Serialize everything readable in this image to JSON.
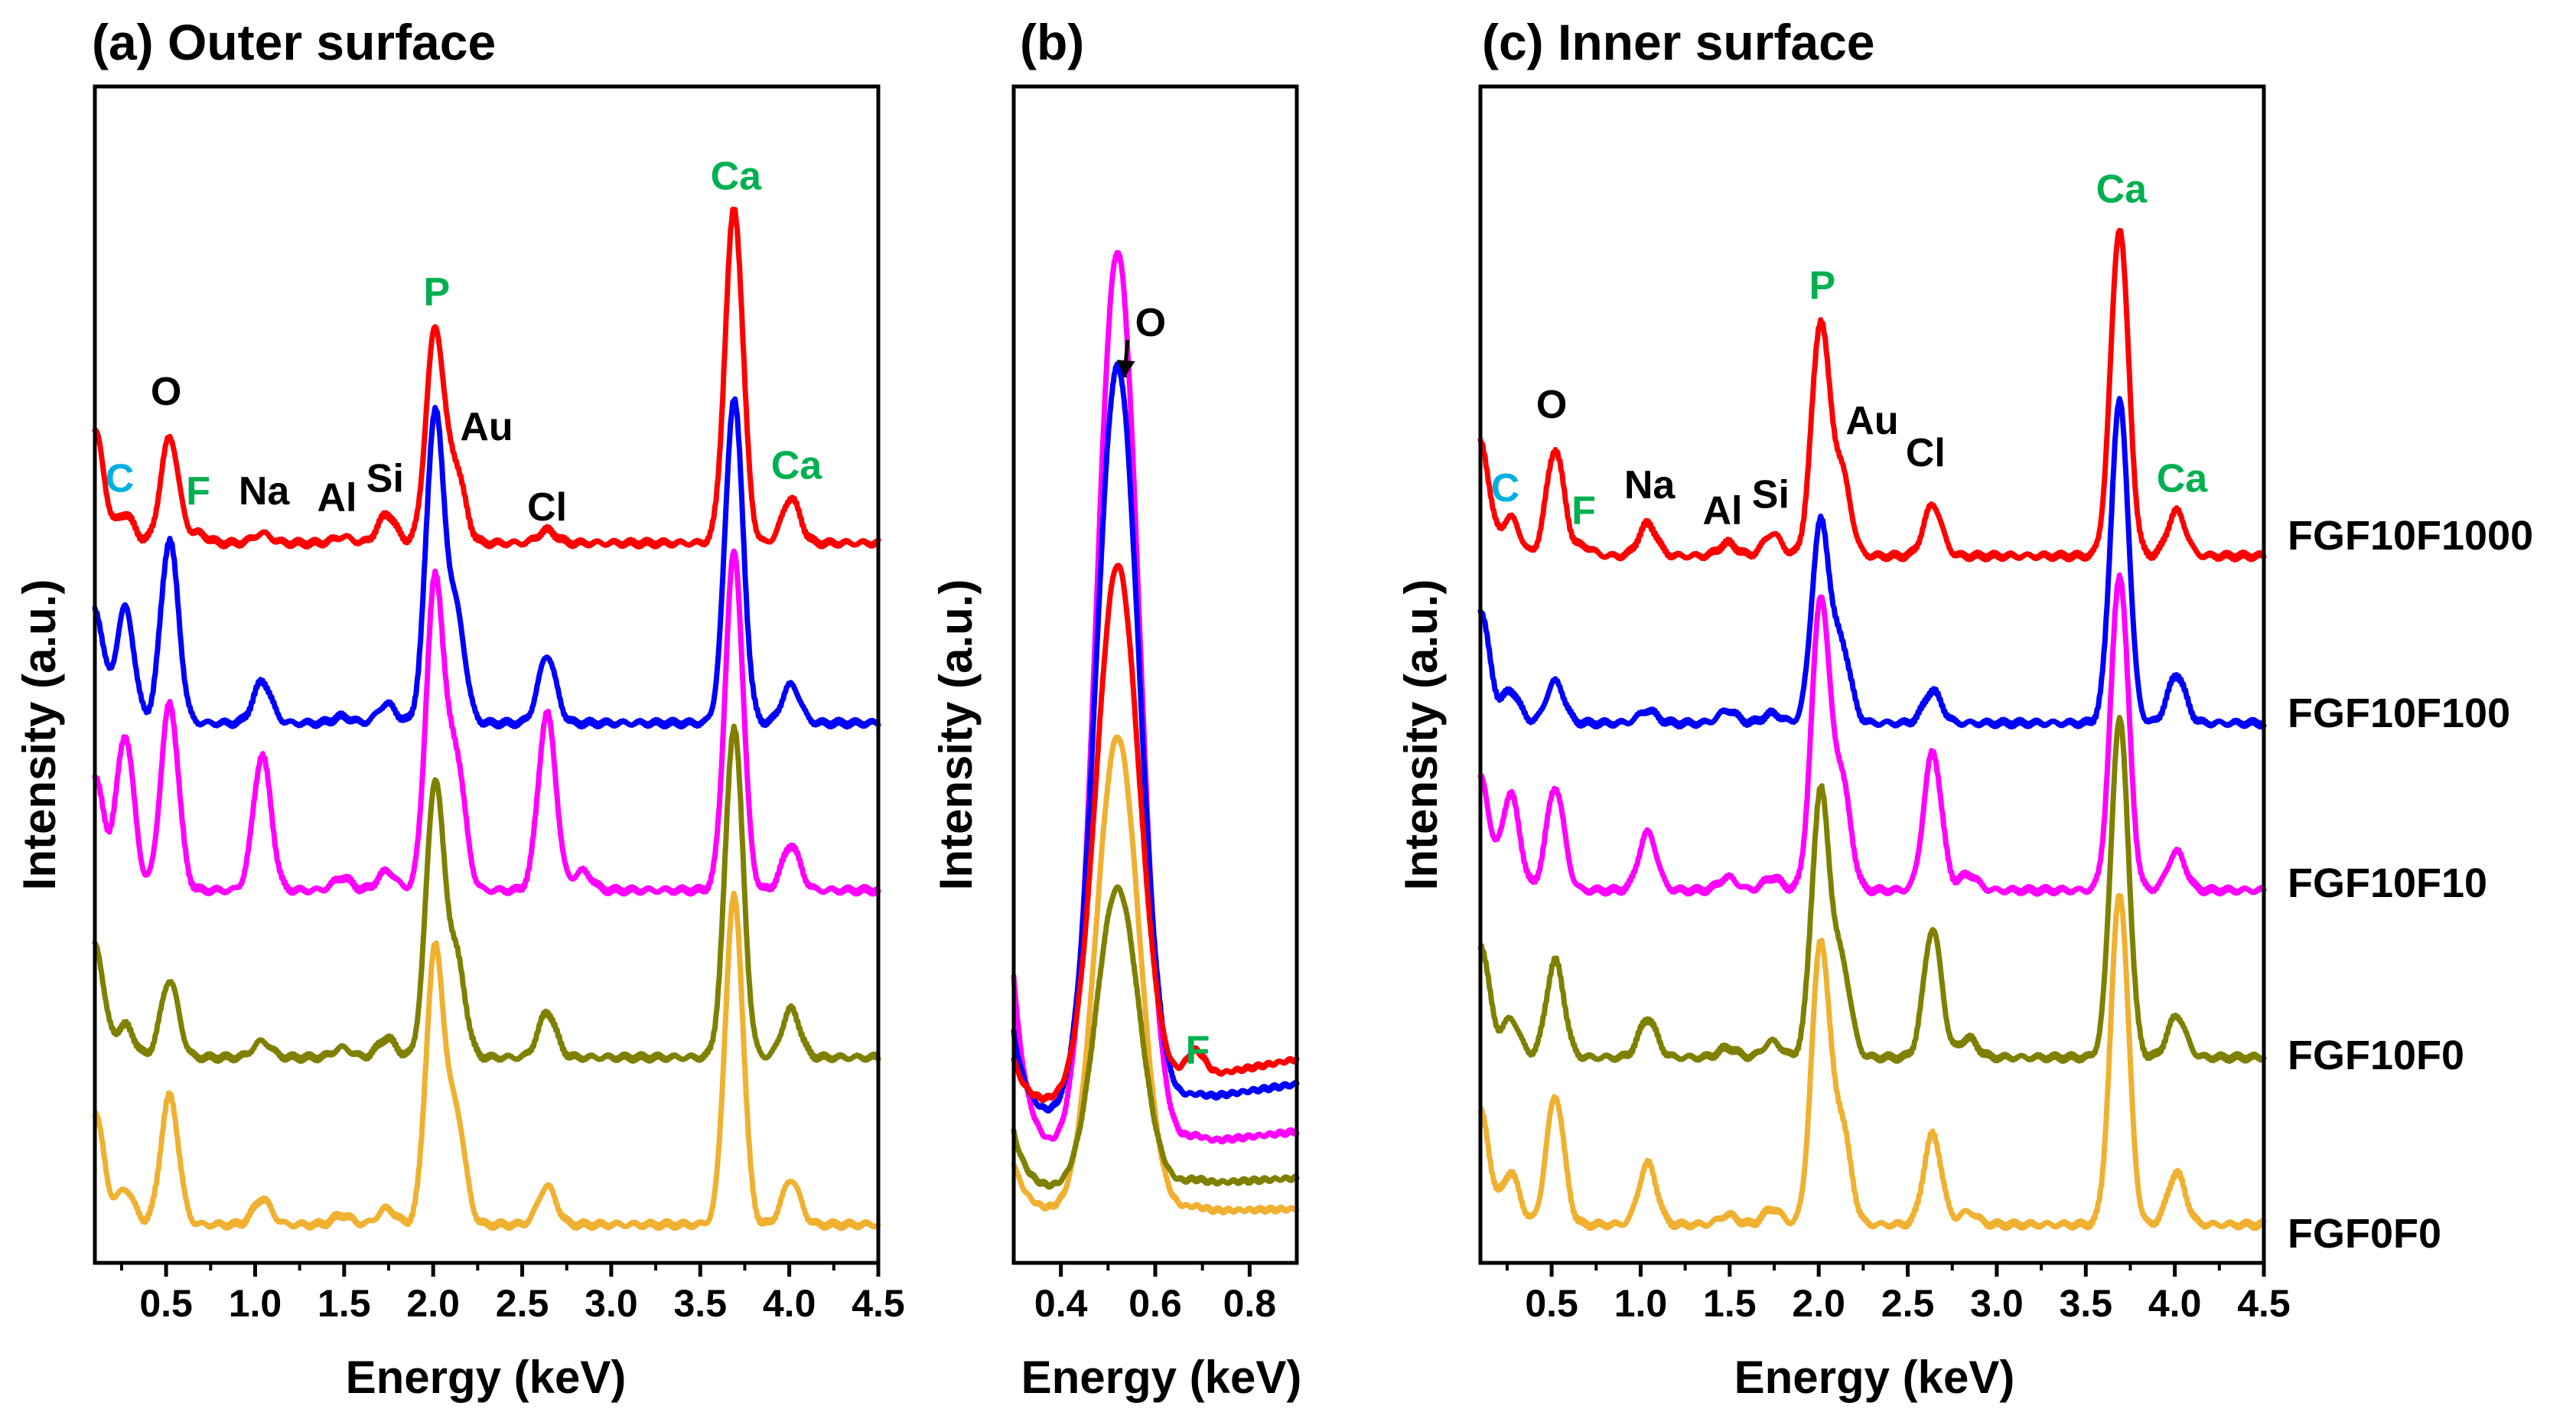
{
  "chart_data": [
    {
      "id": "a",
      "type": "line",
      "title": "(a) Outer surface",
      "xlabel": "Energy (keV)",
      "ylabel": "Intensity (a.u.)",
      "xlim": [
        0.1,
        4.5
      ],
      "xticks": [
        "0.5",
        "1.0",
        "1.5",
        "2.0",
        "2.5",
        "3.0",
        "3.5",
        "4.0",
        "4.5"
      ],
      "xtick_values": [
        0.5,
        1.0,
        1.5,
        2.0,
        2.5,
        3.0,
        3.5,
        4.0,
        4.5
      ],
      "y_ticks_shown": false,
      "offset_step": 0.52,
      "series": [
        {
          "name": "FGF10F1000",
          "color": "#ff0000",
          "offset": 4,
          "baseline": 0.04,
          "sigma": 0.05,
          "peaks": [
            [
              0.27,
              0.09
            ],
            [
              0.52,
              0.33
            ],
            [
              0.68,
              0.03
            ],
            [
              1.04,
              0.03
            ],
            [
              1.49,
              0.02
            ],
            [
              1.74,
              0.09
            ],
            [
              2.01,
              0.66
            ],
            [
              2.13,
              0.22
            ],
            [
              2.64,
              0.04
            ],
            [
              3.69,
              1.04
            ],
            [
              4.01,
              0.14
            ]
          ]
        },
        {
          "name": "FGF10F100",
          "color": "#0000ff",
          "offset": 3,
          "baseline": 0.0,
          "sigma": 0.05,
          "peaks": [
            [
              0.27,
              0.36
            ],
            [
              0.52,
              0.57
            ],
            [
              1.04,
              0.13
            ],
            [
              1.49,
              0.02
            ],
            [
              1.74,
              0.06
            ],
            [
              2.01,
              0.96
            ],
            [
              2.13,
              0.33
            ],
            [
              2.64,
              0.21
            ],
            [
              3.69,
              1.01
            ],
            [
              4.01,
              0.12
            ]
          ]
        },
        {
          "name": "FGF10F10",
          "color": "#ff00ff",
          "offset": 2,
          "baseline": 0.0,
          "sigma": 0.05,
          "peaks": [
            [
              0.27,
              0.48
            ],
            [
              0.52,
              0.58
            ],
            [
              1.04,
              0.42
            ],
            [
              1.49,
              0.04
            ],
            [
              1.74,
              0.06
            ],
            [
              2.01,
              0.96
            ],
            [
              2.13,
              0.4
            ],
            [
              2.64,
              0.55
            ],
            [
              2.84,
              0.06
            ],
            [
              3.69,
              1.05
            ],
            [
              4.01,
              0.14
            ]
          ]
        },
        {
          "name": "FGF10F0",
          "color": "#808000",
          "offset": 1,
          "baseline": 0.0,
          "sigma": 0.05,
          "peaks": [
            [
              0.27,
              0.1
            ],
            [
              0.52,
              0.24
            ],
            [
              1.04,
              0.05
            ],
            [
              1.49,
              0.03
            ],
            [
              1.74,
              0.06
            ],
            [
              2.01,
              0.85
            ],
            [
              2.13,
              0.3
            ],
            [
              2.64,
              0.14
            ],
            [
              3.69,
              1.03
            ],
            [
              4.01,
              0.15
            ]
          ]
        },
        {
          "name": "FGF0F0",
          "color": "#f0b030",
          "offset": 0,
          "baseline": 0.0,
          "sigma": 0.05,
          "peaks": [
            [
              0.27,
              0.11
            ],
            [
              0.52,
              0.4
            ],
            [
              1.04,
              0.08
            ],
            [
              1.49,
              0.03
            ],
            [
              1.74,
              0.05
            ],
            [
              2.01,
              0.85
            ],
            [
              2.13,
              0.33
            ],
            [
              2.64,
              0.12
            ],
            [
              3.69,
              1.02
            ],
            [
              4.01,
              0.14
            ]
          ]
        }
      ],
      "annotations": [
        {
          "text": "C",
          "x": 0.24,
          "series": 0,
          "dy": 0.16,
          "color": "#00b0e0"
        },
        {
          "text": "O",
          "x": 0.5,
          "series": 0,
          "dy": 0.43,
          "color": "#000000"
        },
        {
          "text": "F",
          "x": 0.68,
          "series": 0,
          "dy": 0.12,
          "color": "#00b050"
        },
        {
          "text": "Na",
          "x": 1.05,
          "series": 0,
          "dy": 0.12,
          "color": "#000000"
        },
        {
          "text": "Al",
          "x": 1.46,
          "series": 0,
          "dy": 0.1,
          "color": "#000000"
        },
        {
          "text": "Si",
          "x": 1.73,
          "series": 0,
          "dy": 0.16,
          "color": "#000000"
        },
        {
          "text": "P",
          "x": 2.02,
          "series": 0,
          "dy": 0.74,
          "color": "#00b050"
        },
        {
          "text": "Au",
          "x": 2.3,
          "series": 0,
          "dy": 0.32,
          "color": "#000000"
        },
        {
          "text": "Cl",
          "x": 2.64,
          "series": 0,
          "dy": 0.07,
          "color": "#000000"
        },
        {
          "text": "Ca",
          "x": 3.7,
          "series": 0,
          "dy": 1.1,
          "color": "#00b050"
        },
        {
          "text": "Ca",
          "x": 4.04,
          "series": 0,
          "dy": 0.2,
          "color": "#00b050"
        }
      ]
    },
    {
      "id": "b",
      "type": "line",
      "title": "(b)",
      "xlabel": "Energy (keV)",
      "ylabel": "Intensity (a.u.)",
      "xlim": [
        0.3,
        0.9
      ],
      "xticks": [
        "0.4",
        "0.6",
        "0.8"
      ],
      "xtick_values": [
        0.4,
        0.6,
        0.8
      ],
      "y_ticks_shown": false,
      "series": [
        {
          "name": "FGF10F1000",
          "color": "#ff0000",
          "base": 0.55,
          "tail": 0.5,
          "peak": 2.55,
          "sigma": 0.045,
          "fpeak": 0.13,
          "wall": 0.25
        },
        {
          "name": "FGF10F100",
          "color": "#0000ff",
          "base": 0.48,
          "tail": 0.4,
          "peak": 3.6,
          "sigma": 0.045,
          "fpeak": 0.02,
          "wall": 0.45
        },
        {
          "name": "FGF10F10",
          "color": "#ff00ff",
          "base": 0.3,
          "tail": 0.3,
          "peak": 4.35,
          "sigma": 0.045,
          "fpeak": 0.03,
          "wall": 0.9
        },
        {
          "name": "FGF10F0",
          "color": "#808000",
          "base": 0.15,
          "tail": 0.15,
          "peak": 1.45,
          "sigma": 0.045,
          "fpeak": 0.02,
          "wall": 0.3
        },
        {
          "name": "FGF0F0",
          "color": "#f0b030",
          "base": 0.05,
          "tail": 0.05,
          "peak": 2.3,
          "sigma": 0.045,
          "fpeak": 0.02,
          "wall": 0.25
        }
      ],
      "annotations": [
        {
          "text": "O",
          "x": 0.59,
          "y": 4.3,
          "color": "#000000",
          "arrow_to": [
            0.535,
            4.1
          ]
        },
        {
          "text": "F",
          "x": 0.69,
          "y": 0.78,
          "color": "#00b050"
        }
      ]
    },
    {
      "id": "c",
      "type": "line",
      "title": "(c) Inner surface",
      "xlabel": "Energy (keV)",
      "ylabel": "Intensity (a.u.)",
      "xlim": [
        0.1,
        4.5
      ],
      "xticks": [
        "0.5",
        "1.0",
        "1.5",
        "2.0",
        "2.5",
        "3.0",
        "3.5",
        "4.0",
        "4.5"
      ],
      "xtick_values": [
        0.5,
        1.0,
        1.5,
        2.0,
        2.5,
        3.0,
        3.5,
        4.0,
        4.5
      ],
      "y_ticks_shown": false,
      "offset_step": 0.52,
      "series": [
        {
          "name": "FGF10F1000",
          "color": "#ff0000",
          "offset": 4,
          "baseline": 0.0,
          "sigma": 0.05,
          "peaks": [
            [
              0.27,
              0.12
            ],
            [
              0.52,
              0.33
            ],
            [
              0.68,
              0.03
            ],
            [
              1.04,
              0.1
            ],
            [
              1.49,
              0.04
            ],
            [
              1.74,
              0.07
            ],
            [
              2.01,
              0.72
            ],
            [
              2.13,
              0.25
            ],
            [
              2.64,
              0.16
            ],
            [
              3.69,
              1.02
            ],
            [
              4.01,
              0.14
            ]
          ]
        },
        {
          "name": "FGF10F100",
          "color": "#0000ff",
          "offset": 3,
          "baseline": 0.0,
          "sigma": 0.05,
          "peaks": [
            [
              0.27,
              0.1
            ],
            [
              0.52,
              0.13
            ],
            [
              1.04,
              0.04
            ],
            [
              1.49,
              0.04
            ],
            [
              1.74,
              0.03
            ],
            [
              2.01,
              0.62
            ],
            [
              2.13,
              0.23
            ],
            [
              2.64,
              0.1
            ],
            [
              3.69,
              1.0
            ],
            [
              4.01,
              0.15
            ]
          ]
        },
        {
          "name": "FGF10F10",
          "color": "#ff00ff",
          "offset": 2,
          "baseline": 0.0,
          "sigma": 0.05,
          "peaks": [
            [
              0.27,
              0.3
            ],
            [
              0.52,
              0.32
            ],
            [
              1.04,
              0.18
            ],
            [
              1.49,
              0.04
            ],
            [
              1.74,
              0.04
            ],
            [
              2.01,
              0.9
            ],
            [
              2.13,
              0.33
            ],
            [
              2.64,
              0.43
            ],
            [
              2.84,
              0.05
            ],
            [
              3.69,
              0.98
            ],
            [
              4.01,
              0.12
            ]
          ]
        },
        {
          "name": "FGF10F0",
          "color": "#808000",
          "offset": 1,
          "baseline": 0.0,
          "sigma": 0.05,
          "peaks": [
            [
              0.27,
              0.12
            ],
            [
              0.52,
              0.3
            ],
            [
              1.04,
              0.12
            ],
            [
              1.49,
              0.03
            ],
            [
              1.74,
              0.05
            ],
            [
              2.01,
              0.82
            ],
            [
              2.13,
              0.28
            ],
            [
              2.64,
              0.4
            ],
            [
              2.84,
              0.06
            ],
            [
              3.69,
              1.05
            ],
            [
              4.01,
              0.13
            ]
          ]
        },
        {
          "name": "FGF0F0",
          "color": "#f0b030",
          "offset": 0,
          "baseline": 0.0,
          "sigma": 0.05,
          "peaks": [
            [
              0.27,
              0.16
            ],
            [
              0.52,
              0.4
            ],
            [
              1.04,
              0.19
            ],
            [
              1.49,
              0.03
            ],
            [
              1.74,
              0.05
            ],
            [
              2.01,
              0.87
            ],
            [
              2.13,
              0.3
            ],
            [
              2.64,
              0.28
            ],
            [
              2.84,
              0.04
            ],
            [
              3.69,
              1.03
            ],
            [
              4.01,
              0.16
            ]
          ]
        }
      ],
      "annotations": [
        {
          "text": "C",
          "x": 0.24,
          "series": 0,
          "dy": 0.17,
          "color": "#00b0e0"
        },
        {
          "text": "O",
          "x": 0.5,
          "series": 0,
          "dy": 0.43,
          "color": "#000000"
        },
        {
          "text": "F",
          "x": 0.68,
          "series": 0,
          "dy": 0.1,
          "color": "#00b050"
        },
        {
          "text": "Na",
          "x": 1.05,
          "series": 0,
          "dy": 0.18,
          "color": "#000000"
        },
        {
          "text": "Al",
          "x": 1.46,
          "series": 0,
          "dy": 0.1,
          "color": "#000000"
        },
        {
          "text": "Si",
          "x": 1.73,
          "series": 0,
          "dy": 0.15,
          "color": "#000000"
        },
        {
          "text": "P",
          "x": 2.02,
          "series": 0,
          "dy": 0.8,
          "color": "#00b050"
        },
        {
          "text": "Au",
          "x": 2.3,
          "series": 0,
          "dy": 0.38,
          "color": "#000000"
        },
        {
          "text": "Cl",
          "x": 2.6,
          "series": 0,
          "dy": 0.28,
          "color": "#000000"
        },
        {
          "text": "Ca",
          "x": 3.7,
          "series": 0,
          "dy": 1.1,
          "color": "#00b050"
        },
        {
          "text": "Ca",
          "x": 4.04,
          "series": 0,
          "dy": 0.2,
          "color": "#00b050"
        }
      ]
    }
  ],
  "legend": [
    "FGF10F1000",
    "FGF10F100",
    "FGF10F10",
    "FGF10F0",
    "FGF0F0"
  ]
}
